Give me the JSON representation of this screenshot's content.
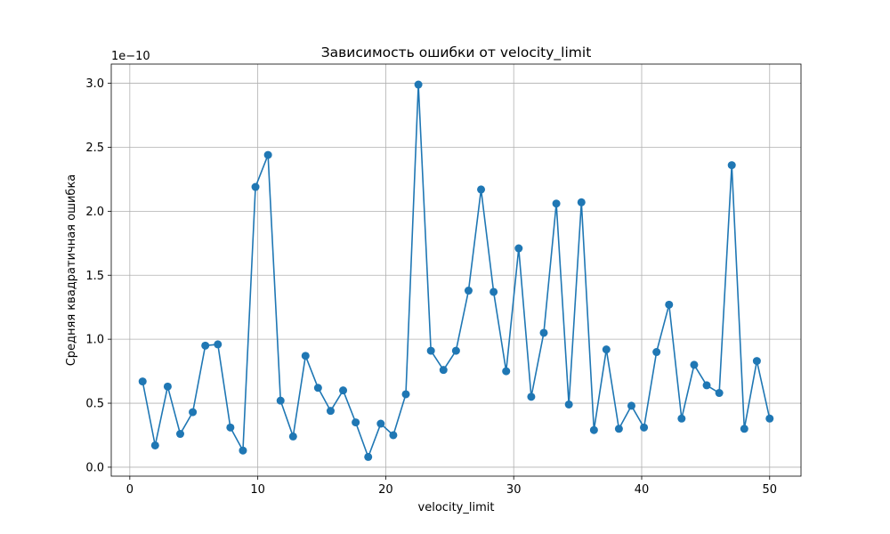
{
  "chart_data": {
    "type": "line",
    "title": "Зависимость ошибки от velocity_limit",
    "xlabel": "velocity_limit",
    "ylabel": "Средняя квадратичная ошибка",
    "y_offset_label": "1e−10",
    "xlim": [
      -1.45,
      52.45
    ],
    "ylim": [
      -0.07,
      3.15
    ],
    "xticks": [
      0,
      10,
      20,
      30,
      40,
      50
    ],
    "xtick_labels": [
      "0",
      "10",
      "20",
      "30",
      "40",
      "50"
    ],
    "yticks": [
      0.0,
      0.5,
      1.0,
      1.5,
      2.0,
      2.5,
      3.0
    ],
    "ytick_labels": [
      "0.0",
      "0.5",
      "1.0",
      "1.5",
      "2.0",
      "2.5",
      "3.0"
    ],
    "grid": true,
    "marker": "circle",
    "color": "#1f77b4",
    "series": [
      {
        "x": [
          1.0,
          1.98,
          2.96,
          3.94,
          4.92,
          5.9,
          6.88,
          7.86,
          8.84,
          9.82,
          10.8,
          11.78,
          12.76,
          13.73,
          14.71,
          15.69,
          16.67,
          17.65,
          18.63,
          19.61,
          20.59,
          21.57,
          22.55,
          23.53,
          24.51,
          25.49,
          26.47,
          27.45,
          28.43,
          29.41,
          30.39,
          31.37,
          32.35,
          33.33,
          34.31,
          35.29,
          36.27,
          37.24,
          38.22,
          39.2,
          40.18,
          41.16,
          42.14,
          43.12,
          44.1,
          45.08,
          46.06,
          47.04,
          48.02,
          49.0,
          50.0
        ],
        "values": [
          0.67,
          0.17,
          0.63,
          0.26,
          0.43,
          0.95,
          0.96,
          0.31,
          0.13,
          2.19,
          2.44,
          0.52,
          0.24,
          0.87,
          0.62,
          0.44,
          0.6,
          0.35,
          0.08,
          0.34,
          0.25,
          0.57,
          2.99,
          0.91,
          0.76,
          0.91,
          1.38,
          2.17,
          1.37,
          0.75,
          1.71,
          0.55,
          1.05,
          2.06,
          0.49,
          2.07,
          0.29,
          0.92,
          0.3,
          0.48,
          0.31,
          0.9,
          1.27,
          0.38,
          0.8,
          0.64,
          0.58,
          2.36,
          0.3,
          0.83,
          0.38
        ]
      }
    ]
  }
}
